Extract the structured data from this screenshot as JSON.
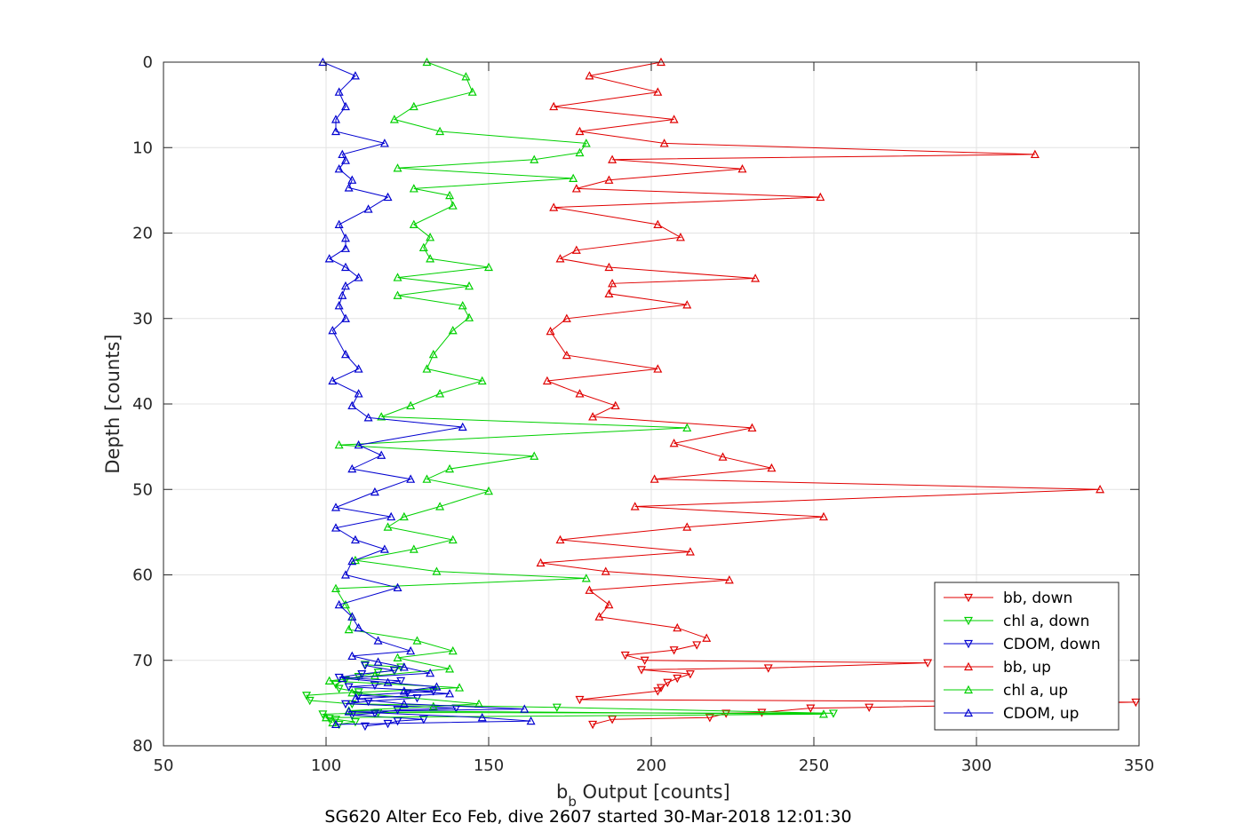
{
  "chart_data": {
    "type": "line",
    "title": "",
    "xlabel_main": "b",
    "xlabel_sub": "b",
    "xlabel_rest": " Output [counts]",
    "ylabel": "Depth [counts]",
    "caption": "SG620 Alter Eco Feb, dive 2607 started 30-Mar-2018 12:01:30",
    "xlim": [
      50,
      350
    ],
    "ylim": [
      0,
      80
    ],
    "y_reversed": true,
    "grid": true,
    "legend_position": "bottom-right",
    "x_ticks": [
      "50",
      "100",
      "150",
      "200",
      "250",
      "300",
      "350"
    ],
    "y_ticks": [
      "0",
      "10",
      "20",
      "30",
      "40",
      "50",
      "60",
      "70",
      "80"
    ],
    "series": [
      {
        "name": "bb, down",
        "color": "#e00000",
        "marker": "triangle-down",
        "points": [
          [
            182,
            77.5
          ],
          [
            188,
            76.9
          ],
          [
            218,
            76.7
          ],
          [
            223,
            76.2
          ],
          [
            234,
            76.1
          ],
          [
            249,
            75.6
          ],
          [
            267,
            75.5
          ],
          [
            349,
            74.9
          ],
          [
            178,
            74.6
          ],
          [
            202,
            73.6
          ],
          [
            203,
            73.2
          ],
          [
            205,
            72.6
          ],
          [
            208,
            72.1
          ],
          [
            212,
            71.6
          ],
          [
            197,
            71.1
          ],
          [
            236,
            70.9
          ],
          [
            285,
            70.3
          ],
          [
            198,
            70.0
          ],
          [
            192,
            69.4
          ],
          [
            207,
            68.8
          ],
          [
            214,
            68.2
          ]
        ]
      },
      {
        "name": "chl a, down",
        "color": "#00d000",
        "marker": "triangle-down",
        "points": [
          [
            104,
            77.5
          ],
          [
            109,
            77.2
          ],
          [
            103,
            76.9
          ],
          [
            101,
            76.8
          ],
          [
            99,
            76.3
          ],
          [
            116,
            76.1
          ],
          [
            256,
            76.2
          ],
          [
            171,
            75.5
          ],
          [
            108,
            75.1
          ],
          [
            95,
            74.7
          ],
          [
            94,
            74.1
          ],
          [
            110,
            73.7
          ],
          [
            104,
            73.3
          ],
          [
            103,
            72.8
          ],
          [
            106,
            72.3
          ],
          [
            110,
            71.9
          ],
          [
            116,
            71.4
          ],
          [
            121,
            71.2
          ],
          [
            123,
            70.8
          ],
          [
            112,
            70.5
          ]
        ]
      },
      {
        "name": "CDOM, down",
        "color": "#0000d0",
        "marker": "triangle-down",
        "points": [
          [
            112,
            77.7
          ],
          [
            119,
            77.4
          ],
          [
            122,
            77.1
          ],
          [
            130,
            76.9
          ],
          [
            108,
            76.4
          ],
          [
            115,
            76.2
          ],
          [
            122,
            75.8
          ],
          [
            140,
            75.6
          ],
          [
            106,
            75.1
          ],
          [
            113,
            74.8
          ],
          [
            128,
            74.4
          ],
          [
            110,
            74.1
          ],
          [
            125,
            73.8
          ],
          [
            133,
            73.6
          ],
          [
            107,
            73.1
          ],
          [
            115,
            72.9
          ],
          [
            123,
            72.4
          ],
          [
            104,
            72.0
          ],
          [
            111,
            71.6
          ],
          [
            121,
            71.2
          ],
          [
            112,
            70.6
          ]
        ]
      },
      {
        "name": "bb, up",
        "color": "#e00000",
        "marker": "triangle-up",
        "points": [
          [
            203,
            0
          ],
          [
            181,
            1.6
          ],
          [
            202,
            3.5
          ],
          [
            170,
            5.2
          ],
          [
            207,
            6.7
          ],
          [
            178,
            8.1
          ],
          [
            204,
            9.5
          ],
          [
            318,
            10.8
          ],
          [
            188,
            11.4
          ],
          [
            228,
            12.5
          ],
          [
            187,
            13.8
          ],
          [
            177,
            14.8
          ],
          [
            252,
            15.8
          ],
          [
            170,
            17.0
          ],
          [
            202,
            19.0
          ],
          [
            209,
            20.5
          ],
          [
            177,
            22.0
          ],
          [
            172,
            23.0
          ],
          [
            187,
            24.0
          ],
          [
            232,
            25.3
          ],
          [
            188,
            25.9
          ],
          [
            187,
            27.1
          ],
          [
            211,
            28.4
          ],
          [
            174,
            30.0
          ],
          [
            169,
            31.5
          ],
          [
            174,
            34.3
          ],
          [
            202,
            35.9
          ],
          [
            168,
            37.3
          ],
          [
            178,
            38.8
          ],
          [
            189,
            40.2
          ],
          [
            182,
            41.5
          ],
          [
            231,
            42.8
          ],
          [
            207,
            44.6
          ],
          [
            222,
            46.2
          ],
          [
            237,
            47.5
          ],
          [
            201,
            48.8
          ],
          [
            338,
            50.0
          ],
          [
            195,
            52.0
          ],
          [
            253,
            53.2
          ],
          [
            211,
            54.4
          ],
          [
            172,
            55.9
          ],
          [
            212,
            57.3
          ],
          [
            166,
            58.6
          ],
          [
            186,
            59.6
          ],
          [
            224,
            60.6
          ],
          [
            181,
            61.8
          ],
          [
            187,
            63.5
          ],
          [
            184,
            64.9
          ],
          [
            208,
            66.2
          ],
          [
            217,
            67.4
          ]
        ]
      },
      {
        "name": "chl a, up",
        "color": "#00d000",
        "marker": "triangle-up",
        "points": [
          [
            131,
            0
          ],
          [
            143,
            1.7
          ],
          [
            145,
            3.5
          ],
          [
            127,
            5.2
          ],
          [
            121,
            6.7
          ],
          [
            135,
            8.1
          ],
          [
            180,
            9.5
          ],
          [
            178,
            10.6
          ],
          [
            164,
            11.4
          ],
          [
            122,
            12.4
          ],
          [
            176,
            13.6
          ],
          [
            127,
            14.8
          ],
          [
            138,
            15.6
          ],
          [
            139,
            16.8
          ],
          [
            127,
            19.0
          ],
          [
            132,
            20.5
          ],
          [
            130,
            21.7
          ],
          [
            132,
            23.0
          ],
          [
            150,
            24.0
          ],
          [
            122,
            25.2
          ],
          [
            144,
            26.2
          ],
          [
            122,
            27.3
          ],
          [
            142,
            28.5
          ],
          [
            144,
            29.9
          ],
          [
            139,
            31.4
          ],
          [
            133,
            34.2
          ],
          [
            131,
            35.9
          ],
          [
            148,
            37.3
          ],
          [
            135,
            38.8
          ],
          [
            126,
            40.2
          ],
          [
            117,
            41.5
          ],
          [
            211,
            42.8
          ],
          [
            104,
            44.8
          ],
          [
            164,
            46.1
          ],
          [
            138,
            47.6
          ],
          [
            131,
            48.8
          ],
          [
            150,
            50.2
          ],
          [
            135,
            52.0
          ],
          [
            124,
            53.2
          ],
          [
            119,
            54.4
          ],
          [
            139,
            55.9
          ],
          [
            127,
            57.0
          ],
          [
            109,
            58.3
          ],
          [
            134,
            59.6
          ],
          [
            180,
            60.4
          ],
          [
            103,
            61.6
          ],
          [
            106,
            63.5
          ],
          [
            108,
            64.9
          ],
          [
            107,
            66.4
          ],
          [
            128,
            67.7
          ],
          [
            139,
            68.9
          ],
          [
            122,
            69.7
          ],
          [
            138,
            71.0
          ],
          [
            115,
            71.8
          ],
          [
            101,
            72.4
          ],
          [
            141,
            73.2
          ],
          [
            108,
            73.8
          ],
          [
            147,
            75.1
          ],
          [
            133,
            75.4
          ],
          [
            107,
            75.9
          ],
          [
            253,
            76.3
          ],
          [
            100,
            76.7
          ],
          [
            102,
            77.3
          ]
        ]
      },
      {
        "name": "CDOM, up",
        "color": "#0000d0",
        "marker": "triangle-up",
        "points": [
          [
            99,
            0
          ],
          [
            109,
            1.6
          ],
          [
            104,
            3.5
          ],
          [
            106,
            5.2
          ],
          [
            103,
            6.7
          ],
          [
            103,
            8.1
          ],
          [
            118,
            9.5
          ],
          [
            105,
            10.8
          ],
          [
            106,
            11.5
          ],
          [
            104,
            12.5
          ],
          [
            108,
            13.8
          ],
          [
            107,
            14.7
          ],
          [
            119,
            15.8
          ],
          [
            113,
            17.2
          ],
          [
            104,
            19.0
          ],
          [
            106,
            20.6
          ],
          [
            106,
            21.8
          ],
          [
            101,
            23.0
          ],
          [
            106,
            24.0
          ],
          [
            110,
            25.2
          ],
          [
            106,
            26.2
          ],
          [
            105,
            27.3
          ],
          [
            104,
            28.5
          ],
          [
            106,
            30.0
          ],
          [
            102,
            31.4
          ],
          [
            106,
            34.2
          ],
          [
            110,
            35.9
          ],
          [
            102,
            37.3
          ],
          [
            110,
            38.8
          ],
          [
            108,
            40.2
          ],
          [
            113,
            41.6
          ],
          [
            142,
            42.7
          ],
          [
            110,
            44.8
          ],
          [
            117,
            46.0
          ],
          [
            108,
            47.6
          ],
          [
            126,
            48.8
          ],
          [
            115,
            50.3
          ],
          [
            103,
            52.1
          ],
          [
            120,
            53.2
          ],
          [
            103,
            54.5
          ],
          [
            109,
            55.9
          ],
          [
            118,
            57.0
          ],
          [
            108,
            58.4
          ],
          [
            106,
            60.0
          ],
          [
            122,
            61.5
          ],
          [
            104,
            63.5
          ],
          [
            108,
            64.9
          ],
          [
            110,
            66.2
          ],
          [
            116,
            67.7
          ],
          [
            126,
            68.9
          ],
          [
            108,
            69.5
          ],
          [
            116,
            70.2
          ],
          [
            124,
            70.8
          ],
          [
            132,
            71.5
          ],
          [
            105,
            72.1
          ],
          [
            119,
            72.6
          ],
          [
            134,
            73.1
          ],
          [
            124,
            73.6
          ],
          [
            138,
            73.9
          ],
          [
            109,
            74.5
          ],
          [
            124,
            75.1
          ],
          [
            161,
            75.7
          ],
          [
            107,
            76.0
          ],
          [
            148,
            76.7
          ],
          [
            163,
            77.1
          ],
          [
            103,
            77.5
          ]
        ]
      }
    ]
  }
}
